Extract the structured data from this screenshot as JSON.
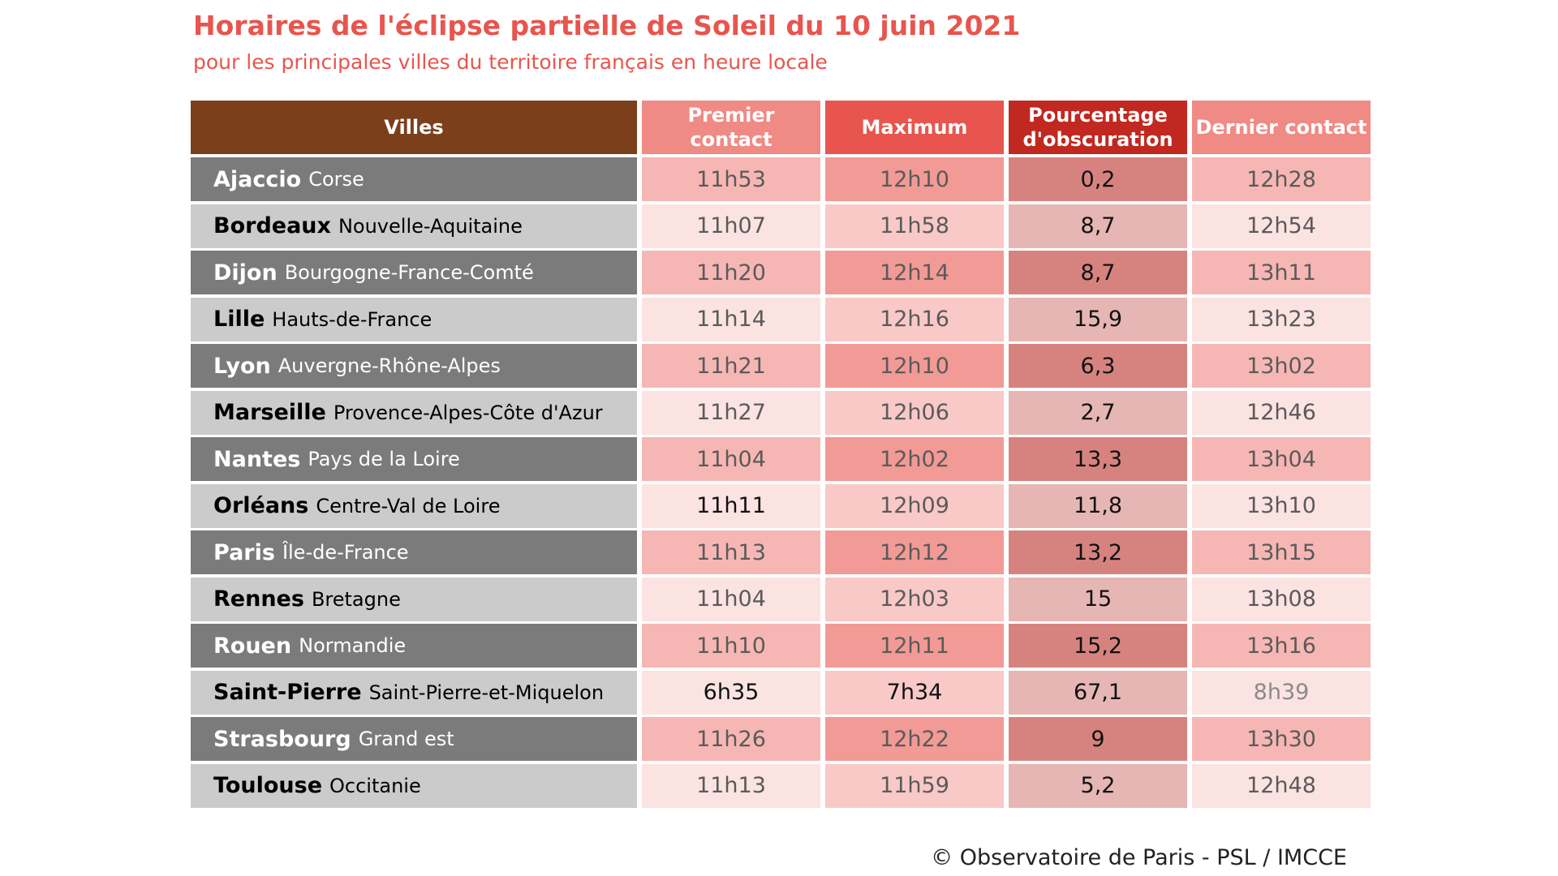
{
  "title": "Horaires de l'éclipse partielle de Soleil du 10 juin 2021",
  "subtitle": "pour les principales villes du territoire français en heure locale",
  "footer": "© Observatoire de Paris - PSL / IMCCE",
  "colors": {
    "title": "#e8554e",
    "header_villes": "#7b3f1c",
    "header_premier": "#ef8a84",
    "header_maximum": "#e8554e",
    "header_pourcentage": "#c1281f",
    "header_dernier": "#ef8a84",
    "row_dark_city": "#7b7b7b",
    "row_light_city": "#cbcbcb"
  },
  "chart_data": {
    "type": "table",
    "title": "Horaires de l'éclipse partielle de Soleil du 10 juin 2021",
    "subtitle": "pour les principales villes du territoire français en heure locale",
    "columns": [
      "Villes",
      "Premier contact",
      "Maximum",
      "Pourcentage d'obscuration",
      "Dernier contact"
    ],
    "rows": [
      {
        "city": "Ajaccio",
        "region": "Corse",
        "premier": "11h53",
        "maximum": "12h10",
        "pourcentage": "0,2",
        "dernier": "12h28"
      },
      {
        "city": "Bordeaux",
        "region": "Nouvelle-Aquitaine",
        "premier": "11h07",
        "maximum": "11h58",
        "pourcentage": "8,7",
        "dernier": "12h54"
      },
      {
        "city": "Dijon",
        "region": "Bourgogne-France-Comté",
        "premier": "11h20",
        "maximum": "12h14",
        "pourcentage": "8,7",
        "dernier": "13h11"
      },
      {
        "city": "Lille",
        "region": "Hauts-de-France",
        "premier": "11h14",
        "maximum": "12h16",
        "pourcentage": "15,9",
        "dernier": "13h23"
      },
      {
        "city": "Lyon",
        "region": "Auvergne-Rhône-Alpes",
        "premier": "11h21",
        "maximum": "12h10",
        "pourcentage": "6,3",
        "dernier": "13h02"
      },
      {
        "city": "Marseille",
        "region": "Provence-Alpes-Côte d'Azur",
        "premier": "11h27",
        "maximum": "12h06",
        "pourcentage": "2,7",
        "dernier": "12h46"
      },
      {
        "city": "Nantes",
        "region": "Pays de la Loire",
        "premier": "11h04",
        "maximum": "12h02",
        "pourcentage": "13,3",
        "dernier": "13h04"
      },
      {
        "city": "Orléans",
        "region": "Centre-Val de Loire",
        "premier": "11h11",
        "maximum": "12h09",
        "pourcentage": "11,8",
        "dernier": "13h10"
      },
      {
        "city": "Paris",
        "region": "Île-de-France",
        "premier": "11h13",
        "maximum": "12h12",
        "pourcentage": "13,2",
        "dernier": "13h15"
      },
      {
        "city": "Rennes",
        "region": "Bretagne",
        "premier": "11h04",
        "maximum": "12h03",
        "pourcentage": "15",
        "dernier": "13h08"
      },
      {
        "city": "Rouen",
        "region": "Normandie",
        "premier": "11h10",
        "maximum": "12h11",
        "pourcentage": "15,2",
        "dernier": "13h16"
      },
      {
        "city": "Saint-Pierre",
        "region": "Saint-Pierre-et-Miquelon",
        "premier": "6h35",
        "maximum": "7h34",
        "pourcentage": "67,1",
        "dernier": "8h39"
      },
      {
        "city": "Strasbourg",
        "region": "Grand est",
        "premier": "11h26",
        "maximum": "12h22",
        "pourcentage": "9",
        "dernier": "13h30"
      },
      {
        "city": "Toulouse",
        "region": "Occitanie",
        "premier": "11h13",
        "maximum": "11h59",
        "pourcentage": "5,2",
        "dernier": "12h48"
      }
    ],
    "row_colors": {
      "odd": {
        "premier": "#f6b7b4",
        "maximum": "#f29a95",
        "pourcentage": "#d6837f",
        "dernier": "#f6b7b4"
      },
      "even": {
        "premier": "#fbe3e2",
        "maximum": "#f8c9c7",
        "pourcentage": "#e6b6b4",
        "dernier": "#fbe3e2"
      }
    }
  }
}
